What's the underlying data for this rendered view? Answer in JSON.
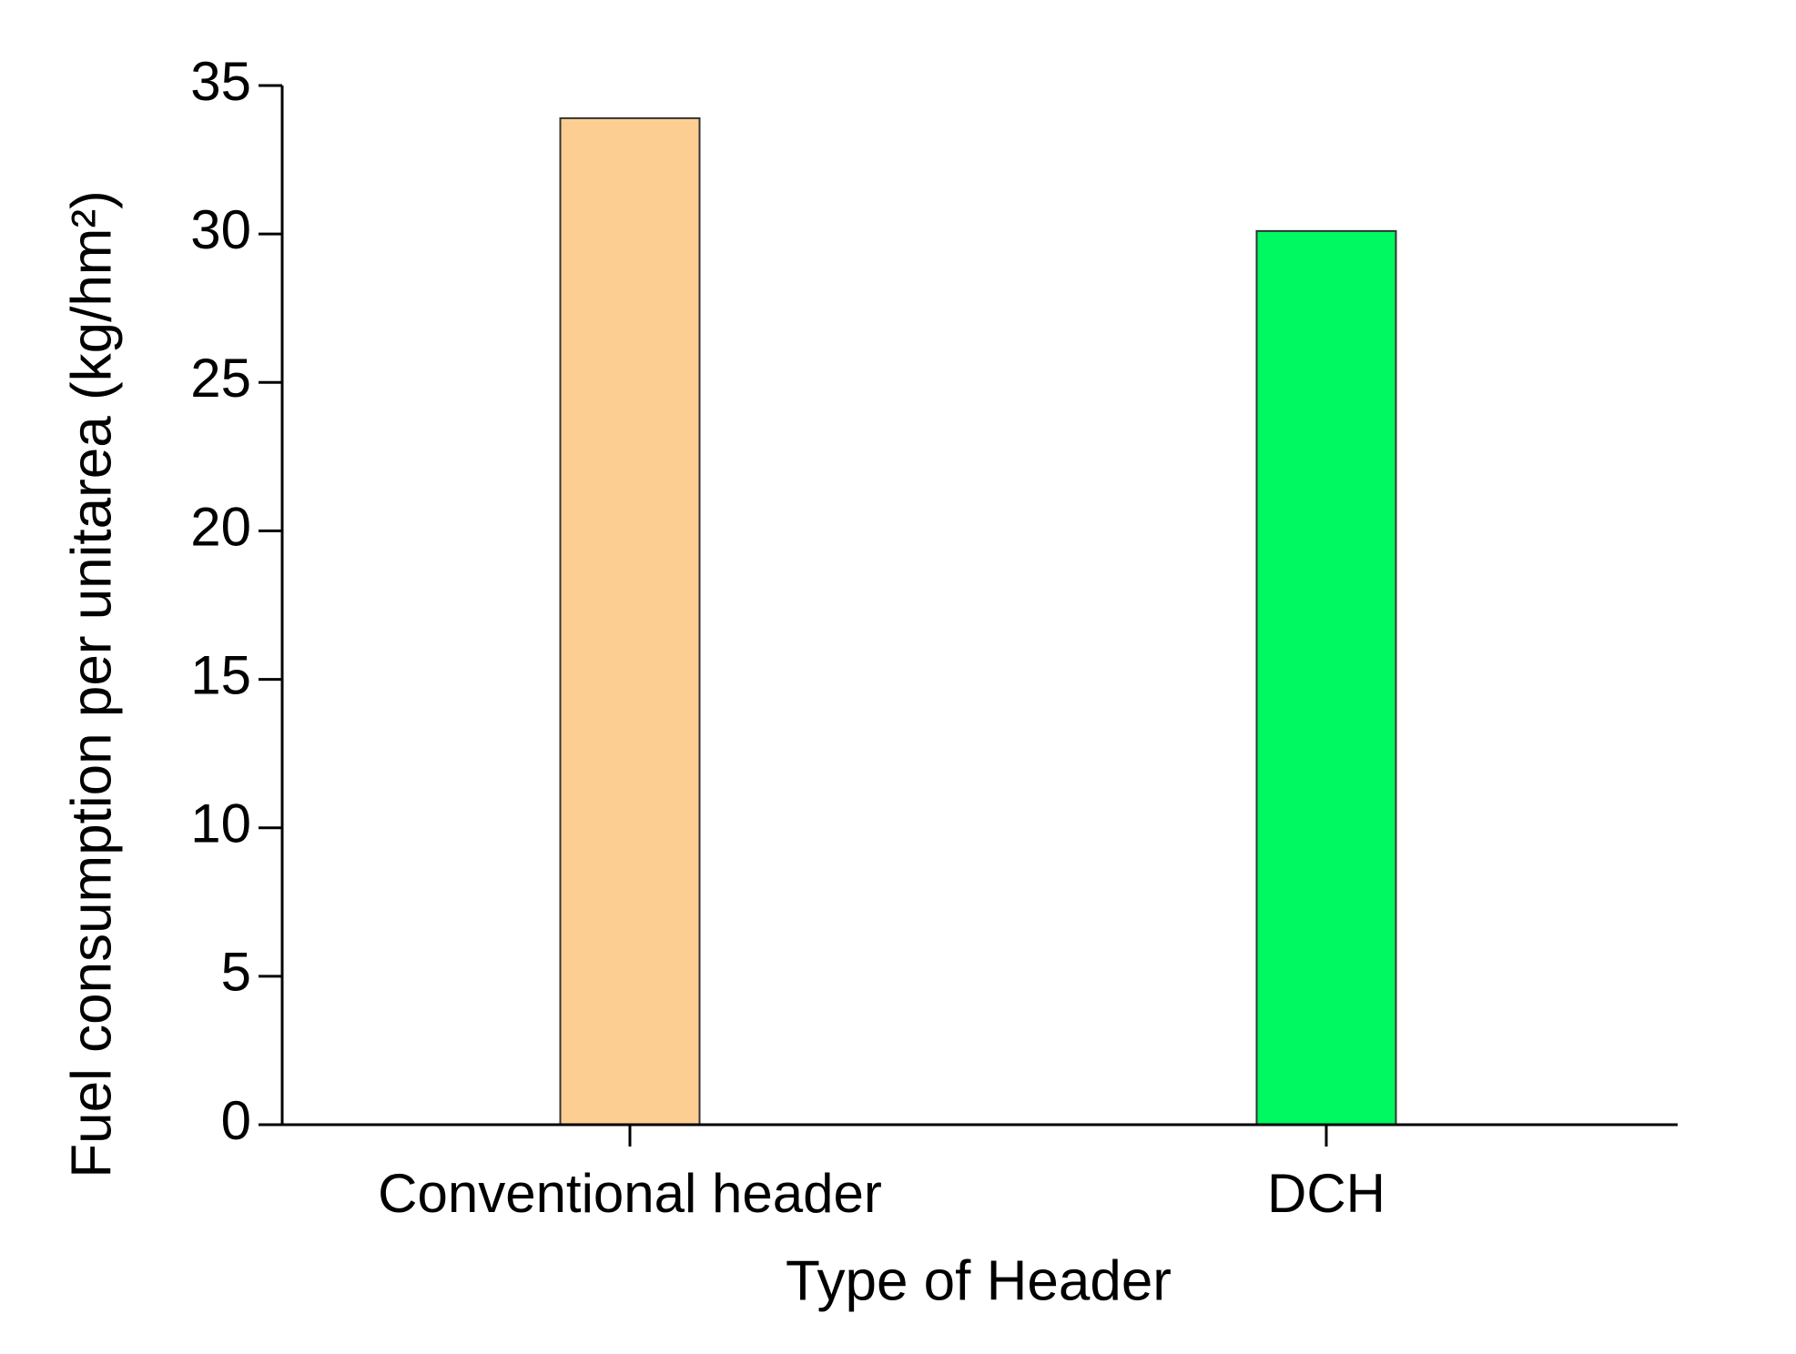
{
  "chart_data": {
    "type": "bar",
    "x_label": "Type of Header",
    "y_label": "Fuel consumption per unitarea (kg/hm²)",
    "categories": [
      "Conventional header",
      "DCH"
    ],
    "values": [
      33.9,
      30.1
    ],
    "colors": [
      "#fdce91",
      "#00f860"
    ],
    "ylim": [
      0,
      35
    ],
    "yticks": [
      0,
      5,
      10,
      15,
      20,
      25,
      30,
      35
    ],
    "grid": false
  }
}
